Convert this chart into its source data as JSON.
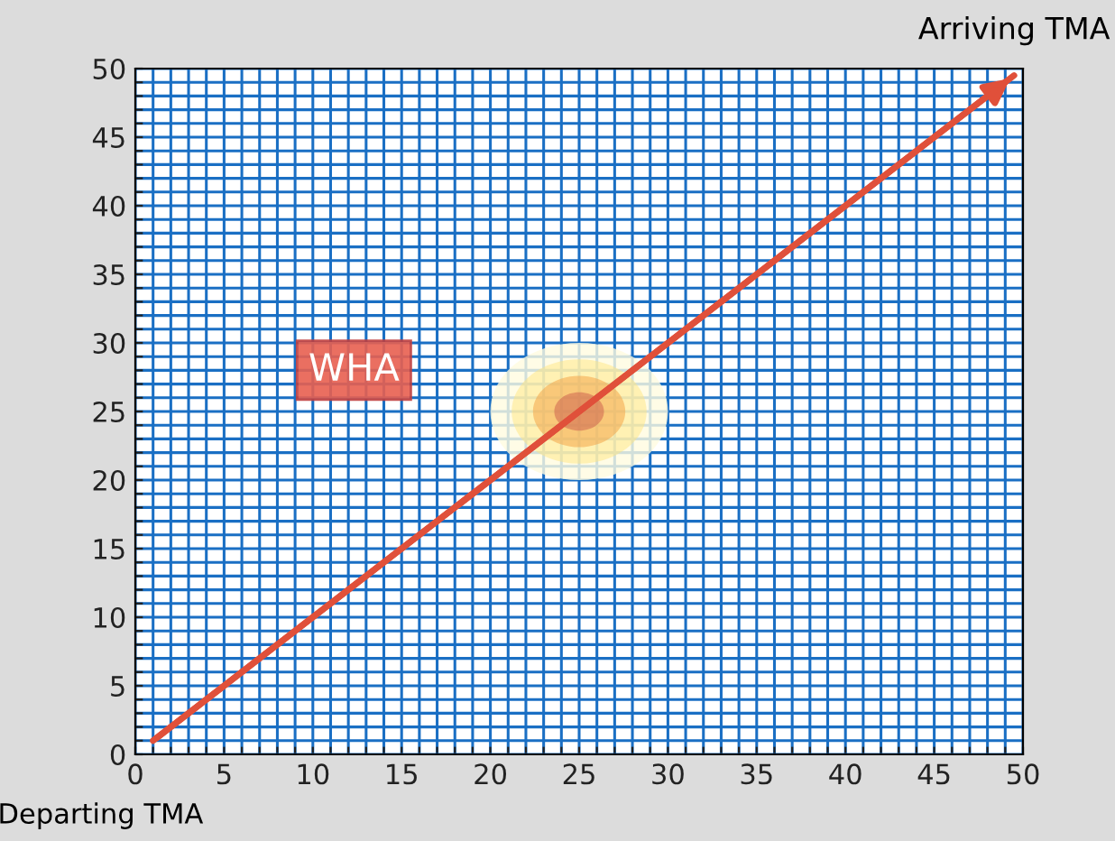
{
  "chart_data": {
    "type": "line",
    "x": [
      1,
      49.5
    ],
    "series": [
      {
        "color": "#e0503a",
        "values": [
          1,
          49.5
        ]
      }
    ],
    "xlim": [
      0,
      50
    ],
    "ylim": [
      0,
      50
    ],
    "xticks": [
      0,
      {
        "value": 1,
        "label": null
      },
      {
        "value": 2,
        "label": null
      },
      {
        "value": 3,
        "label": null
      },
      {
        "value": 4,
        "label": null
      },
      5,
      {
        "value": 6,
        "label": null
      },
      {
        "value": 7,
        "label": null
      },
      {
        "value": 8,
        "label": null
      },
      {
        "value": 9,
        "label": null
      },
      10,
      {
        "value": 11,
        "label": null
      },
      {
        "value": 12,
        "label": null
      },
      {
        "value": 13,
        "label": null
      },
      {
        "value": 14,
        "label": null
      },
      15,
      {
        "value": 16,
        "label": null
      },
      {
        "value": 17,
        "label": null
      },
      {
        "value": 18,
        "label": null
      },
      {
        "value": 19,
        "label": null
      },
      20,
      {
        "value": 21,
        "label": null
      },
      {
        "value": 22,
        "label": null
      },
      {
        "value": 23,
        "label": null
      },
      {
        "value": 24,
        "label": null
      },
      25,
      {
        "value": 26,
        "label": null
      },
      {
        "value": 27,
        "label": null
      },
      {
        "value": 28,
        "label": null
      },
      {
        "value": 29,
        "label": null
      },
      30,
      {
        "value": 31,
        "label": null
      },
      {
        "value": 32,
        "label": null
      },
      {
        "value": 33,
        "label": null
      },
      {
        "value": 34,
        "label": null
      },
      35,
      {
        "value": 36,
        "label": null
      },
      {
        "value": 37,
        "label": null
      },
      {
        "value": 38,
        "label": null
      },
      {
        "value": 39,
        "label": null
      },
      40,
      {
        "value": 41,
        "label": null
      },
      {
        "value": 42,
        "label": null
      },
      {
        "value": 43,
        "label": null
      },
      {
        "value": 44,
        "label": null
      },
      45,
      {
        "value": 46,
        "label": null
      },
      {
        "value": 47,
        "label": null
      },
      {
        "value": 48,
        "label": null
      },
      {
        "value": 49,
        "label": null
      },
      50
    ],
    "yticks": [
      0,
      {
        "value": 1,
        "label": null
      },
      {
        "value": 2,
        "label": null
      },
      {
        "value": 3,
        "label": null
      },
      {
        "value": 4,
        "label": null
      },
      5,
      {
        "value": 6,
        "label": null
      },
      {
        "value": 7,
        "label": null
      },
      {
        "value": 8,
        "label": null
      },
      {
        "value": 9,
        "label": null
      },
      10,
      {
        "value": 11,
        "label": null
      },
      {
        "value": 12,
        "label": null
      },
      {
        "value": 13,
        "label": null
      },
      {
        "value": 14,
        "label": null
      },
      15,
      {
        "value": 16,
        "label": null
      },
      {
        "value": 17,
        "label": null
      },
      {
        "value": 18,
        "label": null
      },
      {
        "value": 19,
        "label": null
      },
      20,
      {
        "value": 21,
        "label": null
      },
      {
        "value": 22,
        "label": null
      },
      {
        "value": 23,
        "label": null
      },
      {
        "value": 24,
        "label": null
      },
      25,
      {
        "value": 26,
        "label": null
      },
      {
        "value": 27,
        "label": null
      },
      {
        "value": 28,
        "label": null
      },
      {
        "value": 29,
        "label": null
      },
      30,
      {
        "value": 31,
        "label": null
      },
      {
        "value": 32,
        "label": null
      },
      {
        "value": 33,
        "label": null
      },
      {
        "value": 34,
        "label": null
      },
      35,
      {
        "value": 36,
        "label": null
      },
      {
        "value": 37,
        "label": null
      },
      {
        "value": 38,
        "label": null
      },
      {
        "value": 39,
        "label": null
      },
      40,
      {
        "value": 41,
        "label": null
      },
      {
        "value": 42,
        "label": null
      },
      {
        "value": 43,
        "label": null
      },
      {
        "value": 44,
        "label": null
      },
      45,
      {
        "value": 46,
        "label": null
      },
      {
        "value": 47,
        "label": null
      },
      {
        "value": 48,
        "label": null
      },
      {
        "value": 49,
        "label": null
      },
      50
    ],
    "grid": true,
    "annotations": [
      {
        "text": "Departing TMA",
        "x": 1,
        "y": 1
      },
      {
        "text": "Arriving TMA",
        "x": 49.5,
        "y": 49.5
      },
      "WHA"
    ]
  }
}
